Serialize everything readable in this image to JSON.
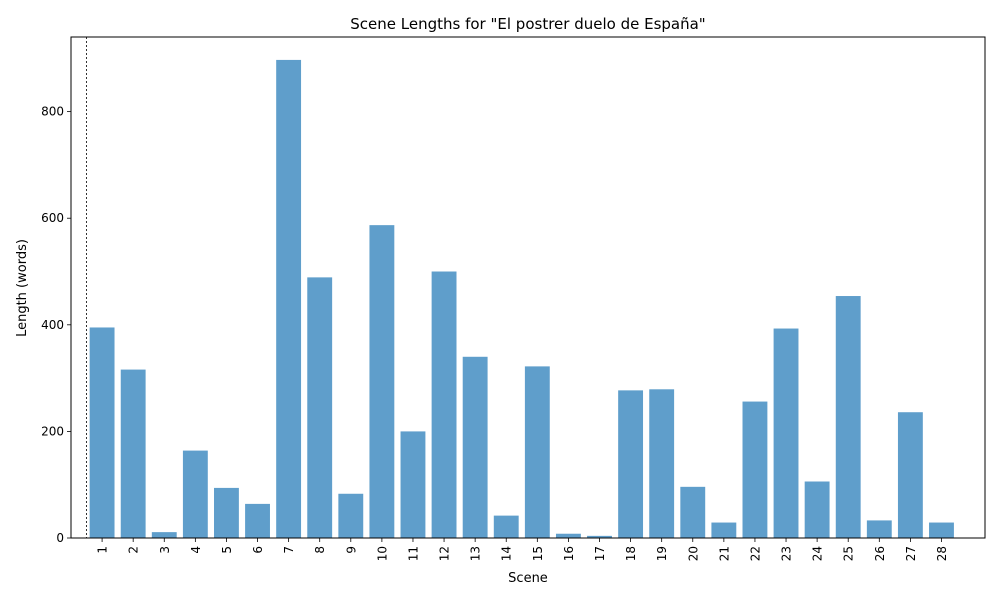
{
  "chart_data": {
    "type": "bar",
    "title": "Scene Lengths for \"El postrer duelo de España\"",
    "xlabel": "Scene",
    "ylabel": "Length (words)",
    "categories": [
      "1",
      "2",
      "3",
      "4",
      "5",
      "6",
      "7",
      "8",
      "9",
      "10",
      "11",
      "12",
      "13",
      "14",
      "15",
      "16",
      "17",
      "18",
      "19",
      "20",
      "21",
      "22",
      "23",
      "24",
      "25",
      "26",
      "27",
      "28"
    ],
    "values": [
      395,
      316,
      11,
      164,
      94,
      64,
      897,
      489,
      83,
      587,
      200,
      500,
      340,
      42,
      322,
      8,
      4,
      277,
      279,
      96,
      29,
      256,
      393,
      106,
      454,
      33,
      236,
      29
    ],
    "ylim": [
      0,
      940
    ],
    "yticks": [
      0,
      200,
      400,
      600,
      800
    ],
    "bar_color": "#5f9ecb",
    "marker_line": {
      "x": 0,
      "style": "dotted",
      "color": "#000000"
    },
    "grid": false
  }
}
